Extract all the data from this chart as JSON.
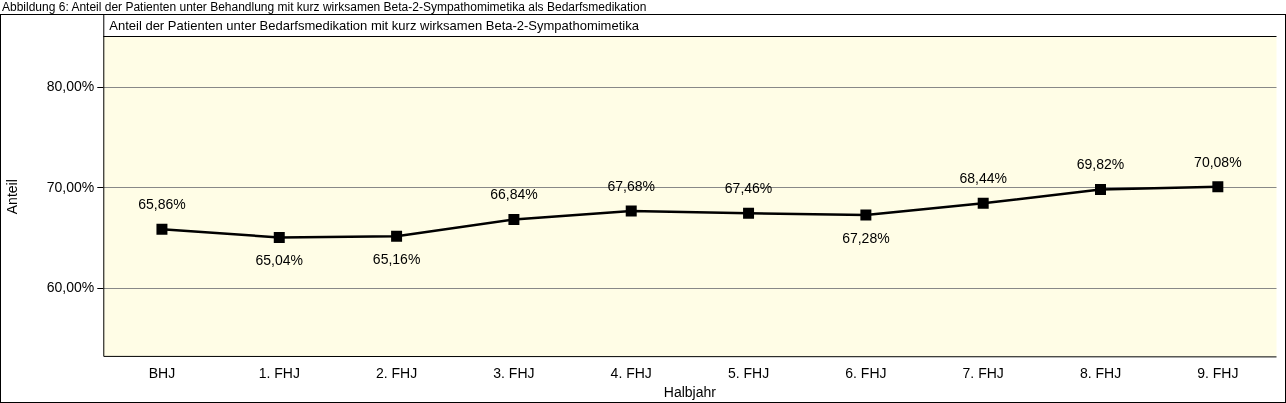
{
  "chart_data": {
    "type": "line",
    "title": "Abbildung 6: Anteil der Patienten unter Behandlung mit kurz wirksamen Beta-2-Sympathomimetika als Bedarfsmedikation",
    "subtitle": "Anteil der Patienten unter Bedarfsmedikation mit kurz wirksamen Beta-2-Sympathomimetika",
    "xlabel": "Halbjahr",
    "ylabel": "Anteil",
    "categories": [
      "BHJ",
      "1. FHJ",
      "2. FHJ",
      "3. FHJ",
      "4. FHJ",
      "5. FHJ",
      "6. FHJ",
      "7. FHJ",
      "8. FHJ",
      "9. FHJ"
    ],
    "series": [
      {
        "color": "#000000",
        "values": [
          65.86,
          65.04,
          65.16,
          66.84,
          67.68,
          67.46,
          67.28,
          68.44,
          69.82,
          70.08
        ],
        "value_labels": [
          "65,86%",
          "65,04%",
          "65,16%",
          "66,84%",
          "67,68%",
          "67,46%",
          "67,28%",
          "68,44%",
          "69,82%",
          "70,08%"
        ]
      }
    ],
    "ylim": [
      53.2,
      85
    ],
    "yticks": [
      {
        "value": 60,
        "label": "60,00%"
      },
      {
        "value": 70,
        "label": "70,00%"
      },
      {
        "value": 80,
        "label": "80,00%"
      }
    ],
    "grid": "y",
    "legend": false,
    "marker": "square",
    "line_style": "solid"
  }
}
